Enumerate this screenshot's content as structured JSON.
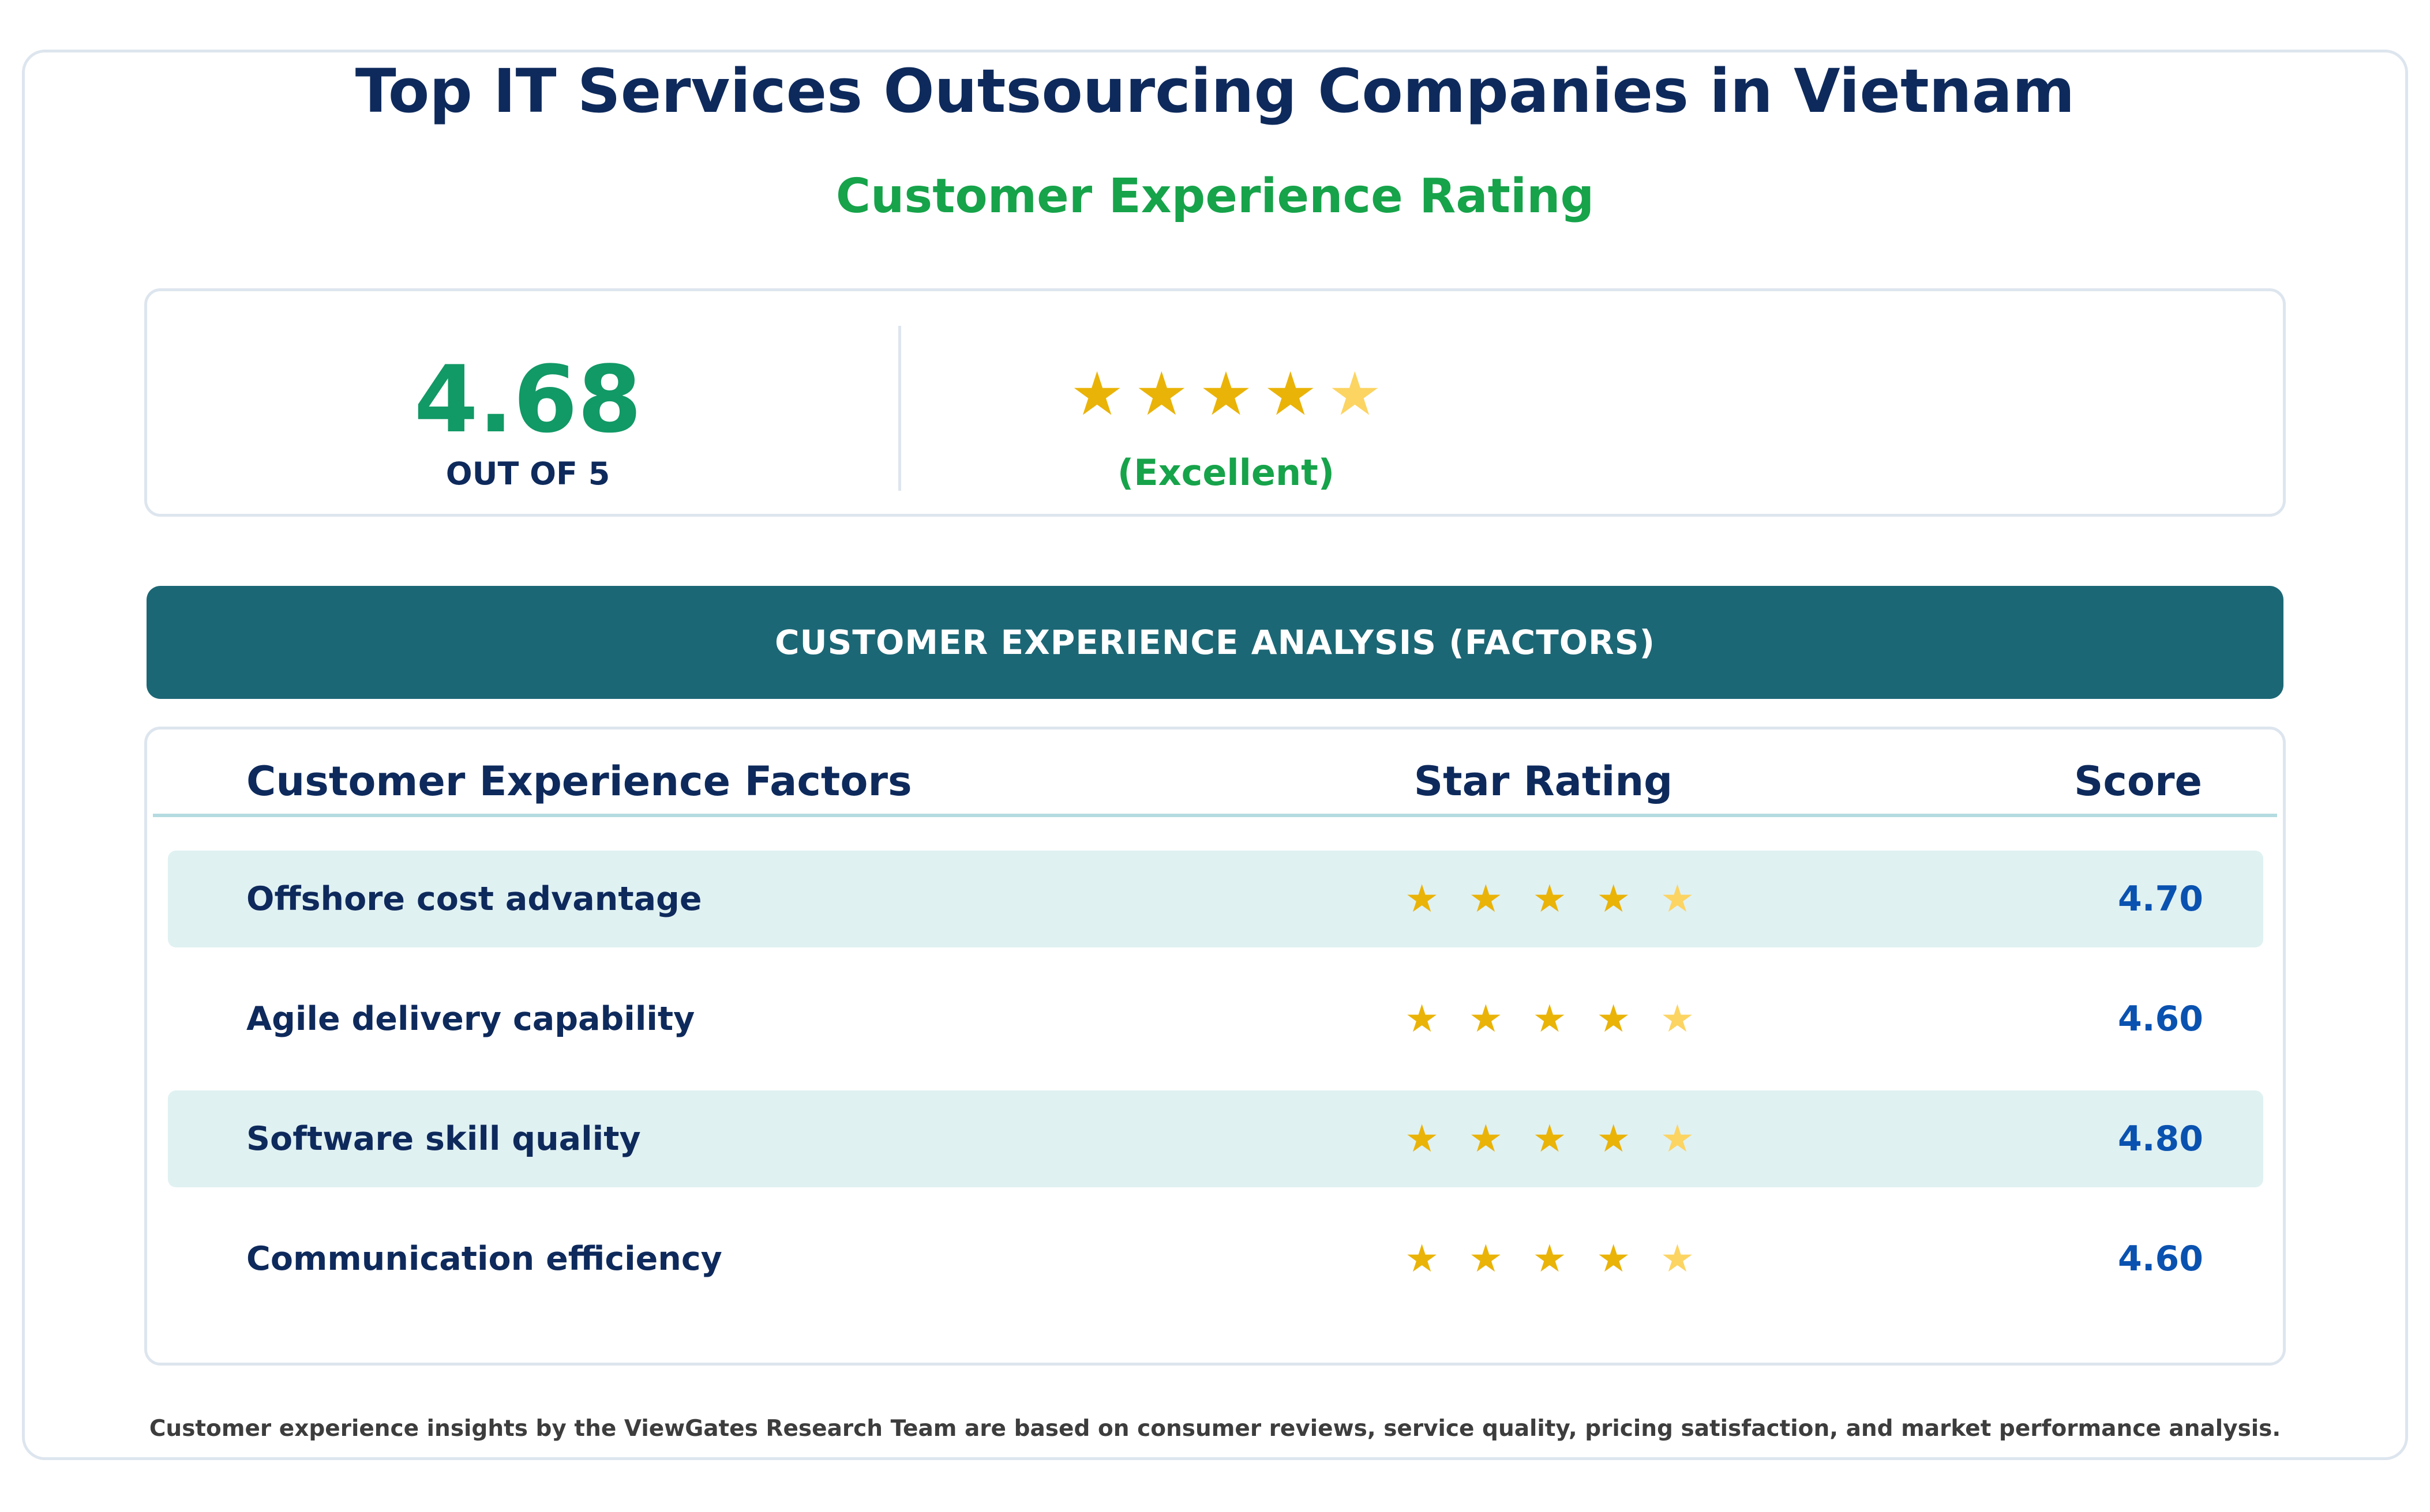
{
  "header": {
    "title": "Top IT Services Outsourcing Companies in Vietnam",
    "subtitle": "Customer Experience Rating"
  },
  "summary": {
    "score": "4.68",
    "out_of": "OUT OF 5",
    "stars": {
      "filled": 4,
      "total": 5
    },
    "rating_word": "(Excellent)"
  },
  "banner": {
    "label": "CUSTOMER EXPERIENCE ANALYSIS (FACTORS)"
  },
  "table": {
    "headers": {
      "factor": "Customer Experience Factors",
      "stars": "Star Rating",
      "score": "Score"
    },
    "rows": [
      {
        "factor": "Offshore cost advantage",
        "stars_filled": 4,
        "score": "4.70"
      },
      {
        "factor": "Agile delivery capability",
        "stars_filled": 4,
        "score": "4.60"
      },
      {
        "factor": "Software skill quality",
        "stars_filled": 4,
        "score": "4.80"
      },
      {
        "factor": "Communication efficiency",
        "stars_filled": 4,
        "score": "4.60"
      }
    ]
  },
  "footer": {
    "note": "Customer experience insights by the ViewGates Research Team are based on consumer reviews, service quality, pricing satisfaction, and market performance analysis."
  },
  "colors": {
    "title": "#0e2a5c",
    "accent_green": "#16a34a",
    "score_green": "#119966",
    "banner": "#1c6775",
    "star": "#eab308",
    "star_soft": "#fcd462",
    "row_shade": "#e0f1f2",
    "score_blue": "#0a52b0"
  },
  "icons": {
    "star": "star-icon",
    "soft_star": "soft-star-icon"
  }
}
